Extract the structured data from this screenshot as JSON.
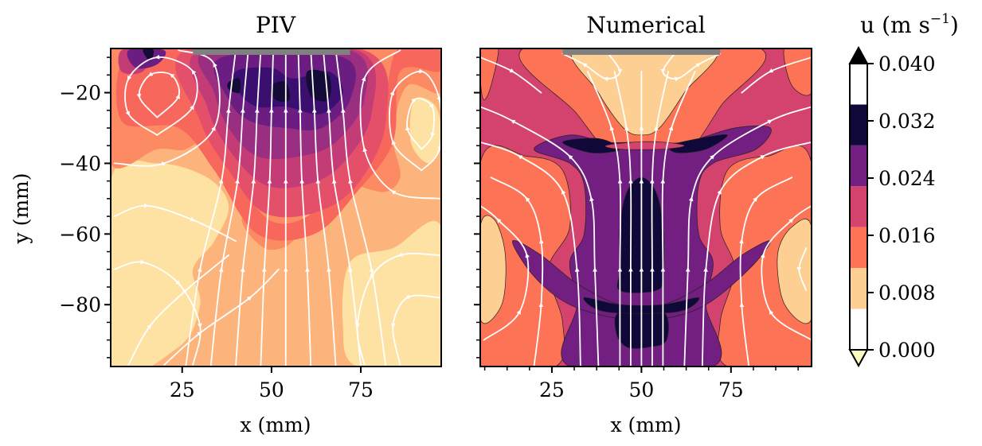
{
  "chart_data": [
    {
      "type": "heatmap",
      "subtype": "filled-contour-with-streamlines",
      "title": "PIV",
      "xlabel": "x (mm)",
      "ylabel": "y (mm)",
      "xlim": [
        5,
        97.5
      ],
      "ylim": [
        -97.5,
        -7.5
      ],
      "xticks": [
        25,
        50,
        75
      ],
      "xtick_labels": [
        "25",
        "50",
        "75"
      ],
      "yticks": [
        -20,
        -40,
        -60,
        -80
      ],
      "ytick_labels": [
        "−20",
        "−40",
        "−60",
        "−80"
      ],
      "y_minor_tick_step": 5,
      "masked_region": {
        "x": [
          28,
          72
        ],
        "y_top": -7.5,
        "color": "#808080"
      },
      "features": [
        {
          "kind": "high-speed core",
          "x": [
            30,
            80
          ],
          "y": [
            -8,
            -45
          ],
          "u_max": 0.034
        },
        {
          "kind": "vortex",
          "center": [
            18,
            -20
          ],
          "rotation": "counter-clockwise"
        },
        {
          "kind": "vortex",
          "center": [
            92,
            -30
          ],
          "rotation": "clockwise"
        },
        {
          "kind": "low-speed region",
          "center": [
            85,
            -85
          ],
          "u": 0.006
        },
        {
          "kind": "low-speed region",
          "center": [
            15,
            -65
          ],
          "u": 0.006
        }
      ]
    },
    {
      "type": "heatmap",
      "subtype": "filled-contour-with-streamlines",
      "title": "Numerical",
      "xlabel": "x (mm)",
      "ylabel": "",
      "xlim": [
        5,
        97.5
      ],
      "ylim": [
        -97.5,
        -7.5
      ],
      "xticks": [
        25,
        50,
        75
      ],
      "xtick_labels": [
        "25",
        "50",
        "75"
      ],
      "x_minor_tick_step": 6.25,
      "yticks": [
        -20,
        -40,
        -60,
        -80
      ],
      "ytick_labels": [],
      "y_minor_tick_step": 5,
      "masked_region": {
        "x": [
          28,
          72
        ],
        "y_top": -7.5,
        "color": "#808080"
      },
      "features": [
        {
          "kind": "upward jet",
          "x": [
            40,
            60
          ],
          "y": [
            -97.5,
            -40
          ],
          "u_max": 0.034
        },
        {
          "kind": "shear layer",
          "y": -36,
          "x": [
            20,
            85
          ]
        },
        {
          "kind": "low-speed lobe",
          "center": [
            50,
            -18
          ],
          "u": 0.008
        },
        {
          "kind": "low-speed region",
          "center": [
            8,
            -72
          ],
          "u": 0.008
        },
        {
          "kind": "low-speed region",
          "center": [
            93,
            -72
          ],
          "u": 0.008
        }
      ]
    }
  ],
  "colorbar": {
    "label": "u (m s⁻¹)",
    "label_main": "u (m s",
    "label_sup": "−1",
    "label_close": ")",
    "min": 0.0,
    "max": 0.04,
    "extend": "both",
    "ticks": [
      0.0,
      0.008,
      0.016,
      0.024,
      0.032,
      0.04
    ],
    "tick_labels": [
      "0.000",
      "0.008",
      "0.016",
      "0.024",
      "0.032",
      "0.040"
    ],
    "levels": [
      0.0,
      0.005714,
      0.011429,
      0.017143,
      0.022857,
      0.028571,
      0.034286,
      0.04
    ],
    "level_colors": [
      "#ffffff",
      "#fecf92",
      "#fc7356",
      "#d3436e",
      "#721f81",
      "#0f0838",
      "#ffffff"
    ],
    "under_color": "#fcfdbf",
    "over_color": "#000004"
  },
  "piv_palette": [
    "#fde2a3",
    "#fdb47c",
    "#fc8b63",
    "#f8675c",
    "#e44f6a",
    "#c43c75",
    "#9a2e80",
    "#6b1d81",
    "#3b0f70",
    "#140b36"
  ]
}
